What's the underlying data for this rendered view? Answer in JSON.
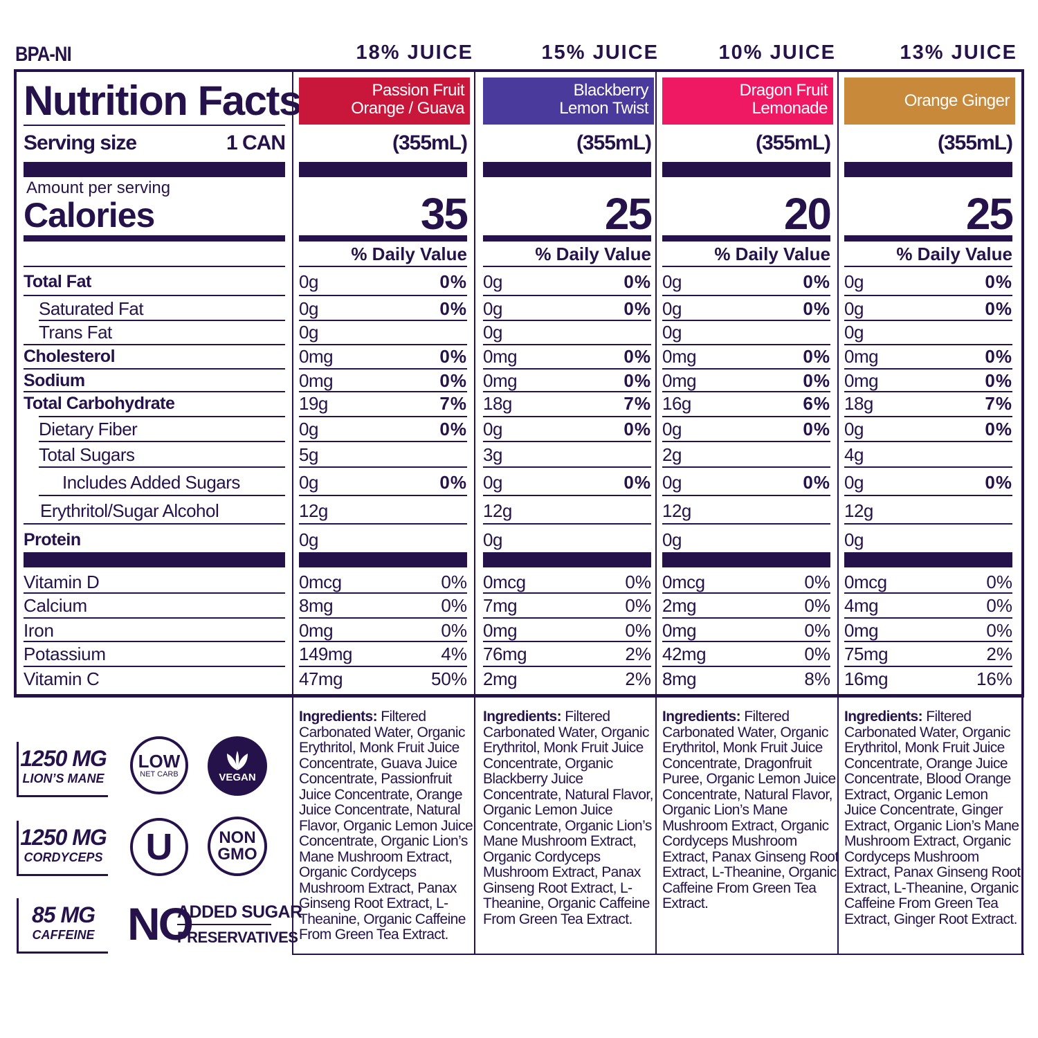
{
  "header": {
    "bpa": "BPA-NI",
    "juice": [
      "18% JUICE",
      "15% JUICE",
      "10% JUICE",
      "13% JUICE"
    ]
  },
  "label": {
    "title": "Nutrition Facts",
    "serving_label": "Serving size",
    "serving_value": "1 CAN",
    "amount_per_serving": "Amount per serving",
    "calories_label": "Calories",
    "daily_value": "% Daily Value"
  },
  "rows": [
    "Total Fat",
    "Saturated Fat",
    "Trans Fat",
    "Cholesterol",
    "Sodium",
    "Total Carbohydrate",
    "Dietary Fiber",
    "Total Sugars",
    "Includes Added Sugars",
    "Erythritol/Sugar Alcohol",
    "Protein"
  ],
  "vitamin_rows": [
    "Vitamin D",
    "Calcium",
    "Iron",
    "Potassium",
    "Vitamin C"
  ],
  "colors": [
    "#c8173b",
    "#4a3a9c",
    "#ee1863",
    "#c9893a"
  ],
  "products": [
    {
      "name1": "Passion Fruit",
      "name2": "Orange / Guava",
      "serving": "(355mL)",
      "calories": "35",
      "amounts": [
        "0g",
        "0g",
        "0g",
        "0mg",
        "0mg",
        "19g",
        "0g",
        "5g",
        "0g",
        "12g",
        "0g"
      ],
      "pcts": [
        "0%",
        "0%",
        "",
        "0%",
        "0%",
        "7%",
        "0%",
        "",
        "0%",
        "",
        ""
      ],
      "vit_amounts": [
        "0mcg",
        "8mg",
        "0mg",
        "149mg",
        "47mg"
      ],
      "vit_pcts": [
        "0%",
        "0%",
        "0%",
        "4%",
        "50%"
      ],
      "ingredients_label": "Ingredients:",
      "ingredients": "Filtered Carbonated Water, Organic Erythritol, Monk Fruit Juice Concentrate, Guava Juice Concentrate, Passionfruit Juice Concentrate, Orange Juice Concentrate, Natural Flavor, Organic Lemon Juice Concentrate, Organic Lion’s Mane Mushroom Extract, Organic Cordyceps Mushroom Extract, Panax Ginseng Root Extract, L-Theanine, Organic Caffeine From Green Tea Extract."
    },
    {
      "name1": "Blackberry",
      "name2": "Lemon Twist",
      "serving": "(355mL)",
      "calories": "25",
      "amounts": [
        "0g",
        "0g",
        "0g",
        "0mg",
        "0mg",
        "18g",
        "0g",
        "3g",
        "0g",
        "12g",
        "0g"
      ],
      "pcts": [
        "0%",
        "0%",
        "",
        "0%",
        "0%",
        "7%",
        "0%",
        "",
        "0%",
        "",
        ""
      ],
      "vit_amounts": [
        "0mcg",
        "7mg",
        "0mg",
        "76mg",
        "2mg"
      ],
      "vit_pcts": [
        "0%",
        "0%",
        "0%",
        "2%",
        "2%"
      ],
      "ingredients_label": "Ingredients:",
      "ingredients": "Filtered Carbonated Water, Organic Erythritol, Monk Fruit Juice Concentrate, Organic Blackberry Juice Concentrate, Natural Flavor, Organic Lemon Juice Concentrate, Organic Lion’s Mane Mushroom Extract, Organic Cordyceps Mushroom Extract, Panax Ginseng Root Extract, L-Theanine, Organic Caffeine From Green Tea Extract."
    },
    {
      "name1": "Dragon Fruit",
      "name2": "Lemonade",
      "serving": "(355mL)",
      "calories": "20",
      "amounts": [
        "0g",
        "0g",
        "0g",
        "0mg",
        "0mg",
        "16g",
        "0g",
        "2g",
        "0g",
        "12g",
        "0g"
      ],
      "pcts": [
        "0%",
        "0%",
        "",
        "0%",
        "0%",
        "6%",
        "0%",
        "",
        "0%",
        "",
        ""
      ],
      "vit_amounts": [
        "0mcg",
        "2mg",
        "0mg",
        "42mg",
        "8mg"
      ],
      "vit_pcts": [
        "0%",
        "0%",
        "0%",
        "0%",
        "8%"
      ],
      "ingredients_label": "Ingredients:",
      "ingredients": "Filtered Carbonated Water, Organic Erythritol, Monk Fruit Juice Concentrate, Dragonfruit Puree, Organic Lemon Juice Concentrate, Natural Flavor, Organic Lion’s Mane Mushroom Extract, Organic Cordyceps Mushroom Extract, Panax Ginseng Root Extract, L-Theanine, Organic Caffeine From Green Tea Extract."
    },
    {
      "name1": "Orange Ginger",
      "name2": "",
      "serving": "(355mL)",
      "calories": "25",
      "amounts": [
        "0g",
        "0g",
        "0g",
        "0mg",
        "0mg",
        "18g",
        "0g",
        "4g",
        "0g",
        "12g",
        "0g"
      ],
      "pcts": [
        "0%",
        "0%",
        "",
        "0%",
        "0%",
        "7%",
        "0%",
        "",
        "0%",
        "",
        ""
      ],
      "vit_amounts": [
        "0mcg",
        "4mg",
        "0mg",
        "75mg",
        "16mg"
      ],
      "vit_pcts": [
        "0%",
        "0%",
        "0%",
        "2%",
        "16%"
      ],
      "ingredients_label": "Ingredients:",
      "ingredients": "Filtered Carbonated Water, Organic Erythritol, Monk Fruit Juice Concentrate, Orange Juice Concentrate, Blood Orange Extract, Organic Lemon Juice Concentrate, Ginger Extract, Organic Lion’s Mane Mushroom Extract, Organic Cordyceps Mushroom Extract, Panax Ginseng Root Extract, L-Theanine, Organic Caffeine From Green Tea Extract, Ginger Root Extract."
    }
  ],
  "badges": {
    "lions_mane_amount": "1250 MG",
    "lions_mane_label": "LION’S MANE",
    "cordyceps_amount": "1250 MG",
    "cordyceps_label": "CORDYCEPS",
    "caffeine_amount": "85 MG",
    "caffeine_label": "CAFFEINE",
    "low": "LOW",
    "net_carb": "NET CARB",
    "vegan": "VEGAN",
    "kosher": "U",
    "non": "NON",
    "gmo": "GMO",
    "no": "NO",
    "added_sugar": "ADDED SUGAR",
    "preservatives": "PRESERVATIVES"
  }
}
